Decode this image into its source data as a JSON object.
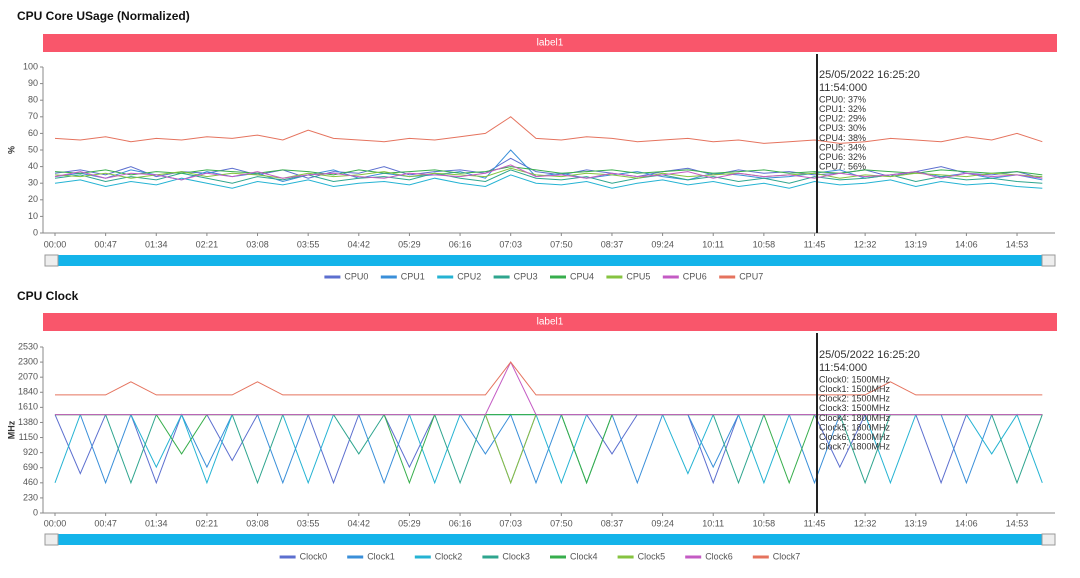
{
  "chart_data": [
    {
      "type": "line",
      "title": "CPU Core USage (Normalized)",
      "banner": "label1",
      "y_label": "%",
      "categories": [
        "00:00",
        null,
        "00:47",
        null,
        "01:34",
        null,
        "02:21",
        null,
        "03:08",
        null,
        "03:55",
        null,
        "04:42",
        null,
        "05:29",
        null,
        "06:16",
        null,
        "07:03",
        null,
        "07:50",
        null,
        "08:37",
        null,
        "09:24",
        null,
        "10:11",
        null,
        "10:58",
        null,
        "11:45",
        null,
        "12:32",
        null,
        "13:19",
        null,
        "14:06",
        null,
        "14:53",
        null
      ],
      "ylim": [
        0,
        100
      ],
      "yticks": [
        0,
        10,
        20,
        30,
        40,
        50,
        60,
        70,
        80,
        90,
        100
      ],
      "grid": false,
      "series": [
        {
          "name": "CPU0",
          "color": "#5c6fcf",
          "values": [
            36,
            38,
            35,
            40,
            34,
            37,
            36,
            39,
            35,
            38,
            33,
            37,
            36,
            40,
            35,
            37,
            38,
            36,
            45,
            37,
            35,
            38,
            36,
            34,
            37,
            39,
            35,
            38,
            36,
            37,
            35,
            36,
            38,
            34,
            37,
            40,
            36,
            35,
            37,
            33
          ]
        },
        {
          "name": "CPU1",
          "color": "#3a8fd9",
          "values": [
            34,
            36,
            33,
            38,
            35,
            32,
            37,
            34,
            36,
            31,
            35,
            38,
            33,
            36,
            34,
            35,
            37,
            33,
            50,
            34,
            36,
            33,
            35,
            37,
            34,
            32,
            36,
            35,
            33,
            34,
            36,
            38,
            33,
            35,
            37,
            34,
            36,
            33,
            35,
            32
          ]
        },
        {
          "name": "CPU2",
          "color": "#25b3d3",
          "values": [
            30,
            32,
            28,
            31,
            29,
            33,
            30,
            27,
            31,
            29,
            32,
            28,
            30,
            31,
            29,
            33,
            30,
            28,
            35,
            30,
            29,
            31,
            27,
            30,
            32,
            29,
            31,
            28,
            30,
            27,
            31,
            29,
            30,
            32,
            28,
            31,
            29,
            30,
            28,
            27
          ]
        },
        {
          "name": "CPU3",
          "color": "#2ea58e",
          "values": [
            33,
            35,
            31,
            34,
            32,
            36,
            33,
            30,
            34,
            32,
            35,
            31,
            33,
            34,
            32,
            36,
            33,
            31,
            38,
            33,
            32,
            34,
            30,
            33,
            35,
            32,
            34,
            31,
            33,
            30,
            34,
            32,
            33,
            35,
            31,
            34,
            32,
            33,
            31,
            30
          ]
        },
        {
          "name": "CPU4",
          "color": "#37ae4c",
          "values": [
            37,
            36,
            38,
            35,
            37,
            36,
            38,
            37,
            36,
            38,
            37,
            35,
            38,
            36,
            37,
            38,
            36,
            37,
            40,
            38,
            36,
            37,
            38,
            36,
            37,
            38,
            36,
            37,
            38,
            36,
            37,
            36,
            38,
            37,
            36,
            38,
            37,
            36,
            37,
            35
          ]
        },
        {
          "name": "CPU5",
          "color": "#86c340",
          "values": [
            35,
            34,
            36,
            33,
            35,
            37,
            34,
            36,
            35,
            33,
            36,
            34,
            35,
            37,
            34,
            36,
            35,
            34,
            39,
            35,
            34,
            36,
            35,
            33,
            36,
            34,
            35,
            36,
            34,
            35,
            36,
            33,
            35,
            34,
            36,
            35,
            34,
            36,
            35,
            34
          ]
        },
        {
          "name": "CPU6",
          "color": "#c45bc4",
          "values": [
            34,
            37,
            33,
            36,
            35,
            32,
            36,
            34,
            37,
            33,
            35,
            36,
            34,
            33,
            36,
            35,
            34,
            36,
            41,
            34,
            35,
            33,
            36,
            34,
            35,
            37,
            33,
            36,
            34,
            35,
            33,
            36,
            34,
            35,
            37,
            33,
            36,
            34,
            35,
            33
          ]
        },
        {
          "name": "CPU7",
          "color": "#e5735e",
          "values": [
            57,
            56,
            58,
            55,
            57,
            56,
            58,
            57,
            59,
            56,
            62,
            57,
            56,
            55,
            57,
            56,
            58,
            60,
            70,
            57,
            56,
            58,
            57,
            55,
            56,
            57,
            55,
            56,
            54,
            55,
            56,
            54,
            55,
            57,
            56,
            55,
            58,
            56,
            60,
            55
          ]
        }
      ],
      "tooltip": {
        "title": "25/05/2022 16:25:20",
        "time": "11:54:000",
        "lines": [
          "CPU0: 37%",
          "CPU1: 32%",
          "CPU2: 29%",
          "CPU3: 30%",
          "CPU4: 38%",
          "CPU5: 34%",
          "CPU6: 32%",
          "CPU7: 56%"
        ]
      }
    },
    {
      "type": "line",
      "title": "CPU Clock",
      "banner": "label1",
      "y_label": "MHz",
      "categories": [
        "00:00",
        null,
        "00:47",
        null,
        "01:34",
        null,
        "02:21",
        null,
        "03:08",
        null,
        "03:55",
        null,
        "04:42",
        null,
        "05:29",
        null,
        "06:16",
        null,
        "07:03",
        null,
        "07:50",
        null,
        "08:37",
        null,
        "09:24",
        null,
        "10:11",
        null,
        "10:58",
        null,
        "11:45",
        null,
        "12:32",
        null,
        "13:19",
        null,
        "14:06",
        null,
        "14:53",
        null
      ],
      "ylim": [
        0,
        2530
      ],
      "yticks": [
        0,
        230,
        460,
        690,
        920,
        1150,
        1380,
        1610,
        1840,
        2070,
        2300,
        2530
      ],
      "grid": false,
      "series": [
        {
          "name": "Clock0",
          "color": "#5c6fcf",
          "values": [
            1500,
            600,
            1500,
            1500,
            460,
            1500,
            1500,
            800,
            1500,
            1500,
            1500,
            460,
            1500,
            1500,
            700,
            1500,
            1500,
            1500,
            460,
            1500,
            1500,
            1500,
            900,
            1500,
            1500,
            1500,
            460,
            1500,
            1500,
            1500,
            1500,
            700,
            1500,
            1500,
            1500,
            460,
            1500,
            1500,
            1500,
            1500
          ]
        },
        {
          "name": "Clock1",
          "color": "#3a8fd9",
          "values": [
            1500,
            1500,
            460,
            1500,
            1500,
            1500,
            700,
            1500,
            1500,
            460,
            1500,
            1500,
            1500,
            460,
            1500,
            1500,
            1500,
            900,
            1500,
            460,
            1500,
            1500,
            1500,
            460,
            1500,
            1500,
            700,
            1500,
            1500,
            1500,
            460,
            1500,
            1500,
            1500,
            1500,
            1500,
            460,
            1500,
            1500,
            1500
          ]
        },
        {
          "name": "Clock2",
          "color": "#25b3d3",
          "values": [
            460,
            1500,
            1500,
            1500,
            700,
            1500,
            460,
            1500,
            1500,
            1500,
            460,
            1500,
            1500,
            1500,
            1500,
            460,
            1500,
            1500,
            1500,
            1500,
            460,
            1500,
            1500,
            1500,
            1500,
            600,
            1500,
            1500,
            460,
            1500,
            1500,
            1500,
            1500,
            460,
            1500,
            1500,
            1500,
            900,
            1500,
            460
          ]
        },
        {
          "name": "Clock3",
          "color": "#2ea58e",
          "values": [
            1500,
            1500,
            1500,
            460,
            1500,
            1500,
            1500,
            1500,
            460,
            1500,
            1500,
            1500,
            900,
            1500,
            1500,
            1500,
            460,
            1500,
            1500,
            1500,
            1500,
            460,
            1500,
            1500,
            1500,
            1500,
            1500,
            460,
            1500,
            1500,
            1500,
            1500,
            460,
            1500,
            1500,
            1500,
            1500,
            1500,
            460,
            1500
          ]
        },
        {
          "name": "Clock4",
          "color": "#37ae4c",
          "values": [
            1500,
            1500,
            1500,
            1500,
            1500,
            900,
            1500,
            1500,
            1500,
            1500,
            1500,
            1500,
            1500,
            1500,
            460,
            1500,
            1500,
            1500,
            1500,
            1500,
            1500,
            460,
            1500,
            1500,
            1500,
            1500,
            1500,
            1500,
            1500,
            460,
            1500,
            1500,
            1500,
            1500,
            1500,
            1500,
            1500,
            1500,
            1500,
            1500
          ]
        },
        {
          "name": "Clock5",
          "color": "#86c340",
          "values": [
            1500,
            1500,
            1500,
            1500,
            1500,
            1500,
            1500,
            1500,
            1500,
            1500,
            1500,
            1500,
            1500,
            1500,
            1500,
            1500,
            1500,
            1500,
            460,
            1500,
            1500,
            1500,
            1500,
            1500,
            1500,
            1500,
            1500,
            1500,
            1500,
            1500,
            1500,
            1500,
            1500,
            1500,
            1500,
            1500,
            1500,
            1500,
            1500,
            1500
          ]
        },
        {
          "name": "Clock6",
          "color": "#c45bc4",
          "values": [
            1500,
            1500,
            1500,
            1500,
            1500,
            1500,
            1500,
            1500,
            1500,
            1500,
            1500,
            1500,
            1500,
            1500,
            1500,
            1500,
            1500,
            1500,
            2300,
            1500,
            1500,
            1500,
            1500,
            1500,
            1500,
            1500,
            1500,
            1500,
            1500,
            1500,
            1500,
            1500,
            1500,
            1500,
            1500,
            1500,
            1500,
            1500,
            1500,
            1500
          ]
        },
        {
          "name": "Clock7",
          "color": "#e5735e",
          "values": [
            1800,
            1800,
            1800,
            2000,
            1800,
            1800,
            1800,
            1800,
            2000,
            1800,
            1800,
            1800,
            1800,
            1800,
            1800,
            1800,
            1800,
            1800,
            2300,
            1800,
            1800,
            1800,
            1800,
            1800,
            1800,
            1800,
            1800,
            1800,
            1800,
            1800,
            1800,
            1800,
            1800,
            2000,
            1800,
            1800,
            1800,
            1800,
            1800,
            1800
          ]
        }
      ],
      "tooltip": {
        "title": "25/05/2022 16:25:20",
        "time": "11:54:000",
        "lines": [
          "Clock0: 1500MHz",
          "Clock1: 1500MHz",
          "Clock2: 1500MHz",
          "Clock3: 1500MHz",
          "Clock4: 1800MHz",
          "Clock5: 1800MHz",
          "Clock6: 1800MHz",
          "Clock7: 1800MHz"
        ]
      }
    }
  ]
}
